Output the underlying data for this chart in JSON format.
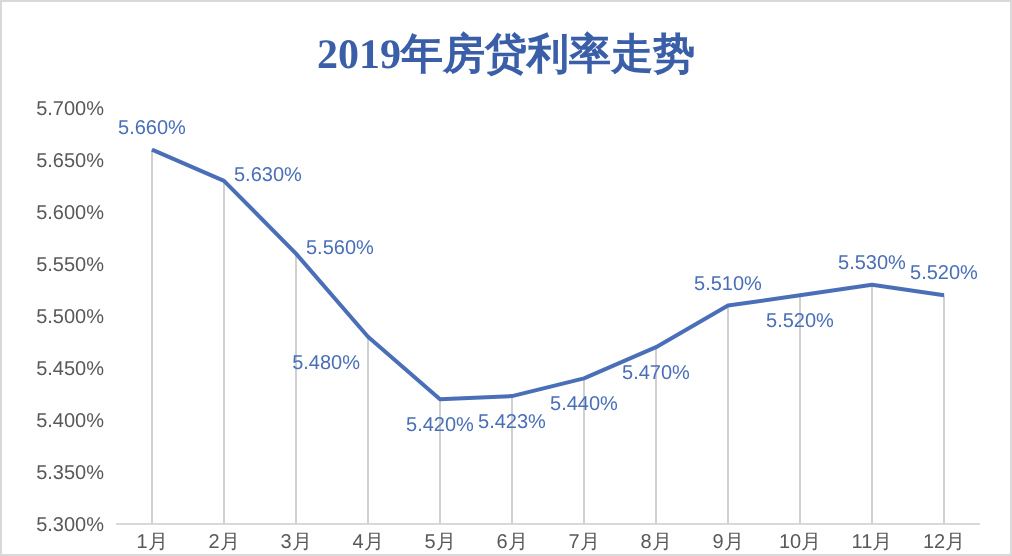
{
  "chart_data": {
    "type": "line",
    "title": "2019年房贷利率走势",
    "categories": [
      "1月",
      "2月",
      "3月",
      "4月",
      "5月",
      "6月",
      "7月",
      "8月",
      "9月",
      "10月",
      "11月",
      "12月"
    ],
    "series": [
      {
        "color": "#4a6fb8",
        "values": [
          5.66,
          5.63,
          5.56,
          5.48,
          5.42,
          5.423,
          5.44,
          5.47,
          5.51,
          5.52,
          5.53,
          5.52
        ],
        "value_labels": [
          "5.660%",
          "5.630%",
          "5.560%",
          "5.480%",
          "5.420%",
          "5.423%",
          "5.440%",
          "5.470%",
          "5.510%",
          "5.520%",
          "5.530%",
          "5.520%"
        ]
      }
    ],
    "ylim": [
      5.3,
      5.7
    ],
    "yticks": [
      {
        "value": 5.3,
        "label": "5.300%"
      },
      {
        "value": 5.35,
        "label": "5.350%"
      },
      {
        "value": 5.4,
        "label": "5.400%"
      },
      {
        "value": 5.45,
        "label": "5.450%"
      },
      {
        "value": 5.5,
        "label": "5.500%"
      },
      {
        "value": 5.55,
        "label": "5.550%"
      },
      {
        "value": 5.6,
        "label": "5.600%"
      },
      {
        "value": 5.65,
        "label": "5.650%"
      },
      {
        "value": 5.7,
        "label": "5.700%"
      }
    ],
    "grid": "x",
    "marker": "none",
    "line_style": "solid"
  }
}
